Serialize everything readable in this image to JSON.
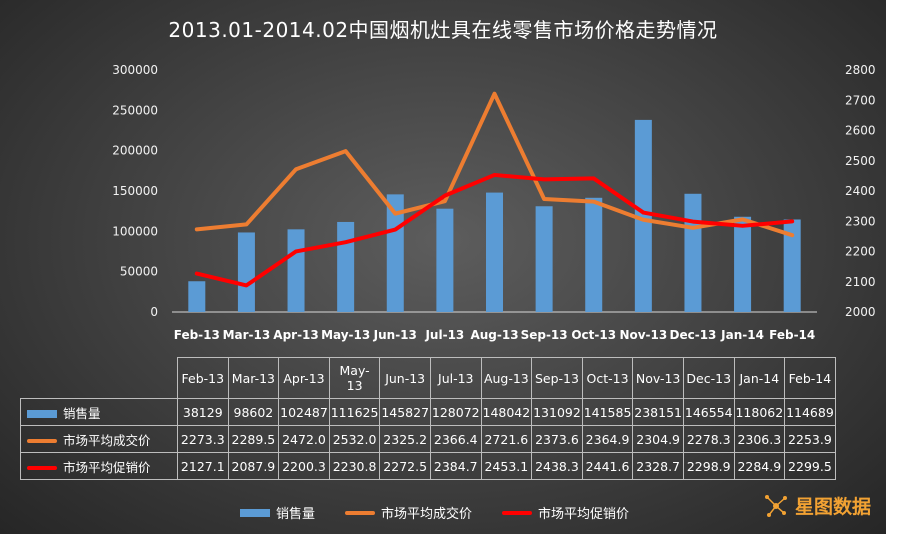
{
  "title": "2013.01-2014.02中国烟机灶具在线零售市场价格走势情况",
  "logo_text": "星图数据",
  "colors": {
    "bar": "#5b9bd5",
    "avg_deal": "#ed7d31",
    "avg_promo": "#ff0000"
  },
  "chart_data": {
    "type": "bar",
    "categories": [
      "Feb-13",
      "Mar-13",
      "Apr-13",
      "May-13",
      "Jun-13",
      "Jul-13",
      "Aug-13",
      "Sep-13",
      "Oct-13",
      "Nov-13",
      "Dec-13",
      "Jan-14",
      "Feb-14"
    ],
    "table_categories": [
      "Feb-13",
      "Mar-13",
      "Apr-13",
      "May-\n13",
      "Jun-13",
      "Jul-13",
      "Aug-13",
      "Sep-13",
      "Oct-13",
      "Nov-13",
      "Dec-13",
      "Jan-14",
      "Feb-14"
    ],
    "series": [
      {
        "name": "销售量",
        "type": "bar",
        "axis": "left",
        "values": [
          38129,
          98602,
          102487,
          111625,
          145827,
          128072,
          148042,
          131092,
          141585,
          238151,
          146554,
          118062,
          114689
        ]
      },
      {
        "name": "市场平均成交价",
        "type": "line",
        "axis": "right",
        "values": [
          2273.3,
          2289.5,
          2472.0,
          2532.0,
          2325.2,
          2366.4,
          2721.6,
          2373.6,
          2364.9,
          2304.9,
          2278.3,
          2306.3,
          2253.9
        ]
      },
      {
        "name": "市场平均促销价",
        "type": "line",
        "axis": "right",
        "values": [
          2127.1,
          2087.9,
          2200.3,
          2230.8,
          2272.5,
          2384.7,
          2453.1,
          2438.3,
          2441.6,
          2328.7,
          2298.9,
          2284.9,
          2299.5
        ]
      }
    ],
    "table_display": [
      [
        "38129",
        "98602",
        "102487",
        "111625",
        "145827",
        "128072",
        "148042",
        "131092",
        "141585",
        "238151",
        "146554",
        "118062",
        "114689"
      ],
      [
        "2273.3",
        "2289.5",
        "2472.0",
        "2532.0",
        "2325.2",
        "2366.4",
        "2721.6",
        "2373.6",
        "2364.9",
        "2304.9",
        "2278.3",
        "2306.3",
        "2253.9"
      ],
      [
        "2127.1",
        "2087.9",
        "2200.3",
        "2230.8",
        "2272.5",
        "2384.7",
        "2453.1",
        "2438.3",
        "2441.6",
        "2328.7",
        "2298.9",
        "2284.9",
        "2299.5"
      ]
    ],
    "y_left": {
      "min": 0,
      "max": 300000,
      "ticks": [
        "300000",
        "250000",
        "200000",
        "150000",
        "100000",
        "50000",
        "0"
      ]
    },
    "y_right": {
      "min": 2000,
      "max": 2800,
      "ticks": [
        "2800",
        "2700",
        "2600",
        "2500",
        "2400",
        "2300",
        "2200",
        "2100",
        "2000"
      ]
    },
    "legend_position": "bottom"
  }
}
